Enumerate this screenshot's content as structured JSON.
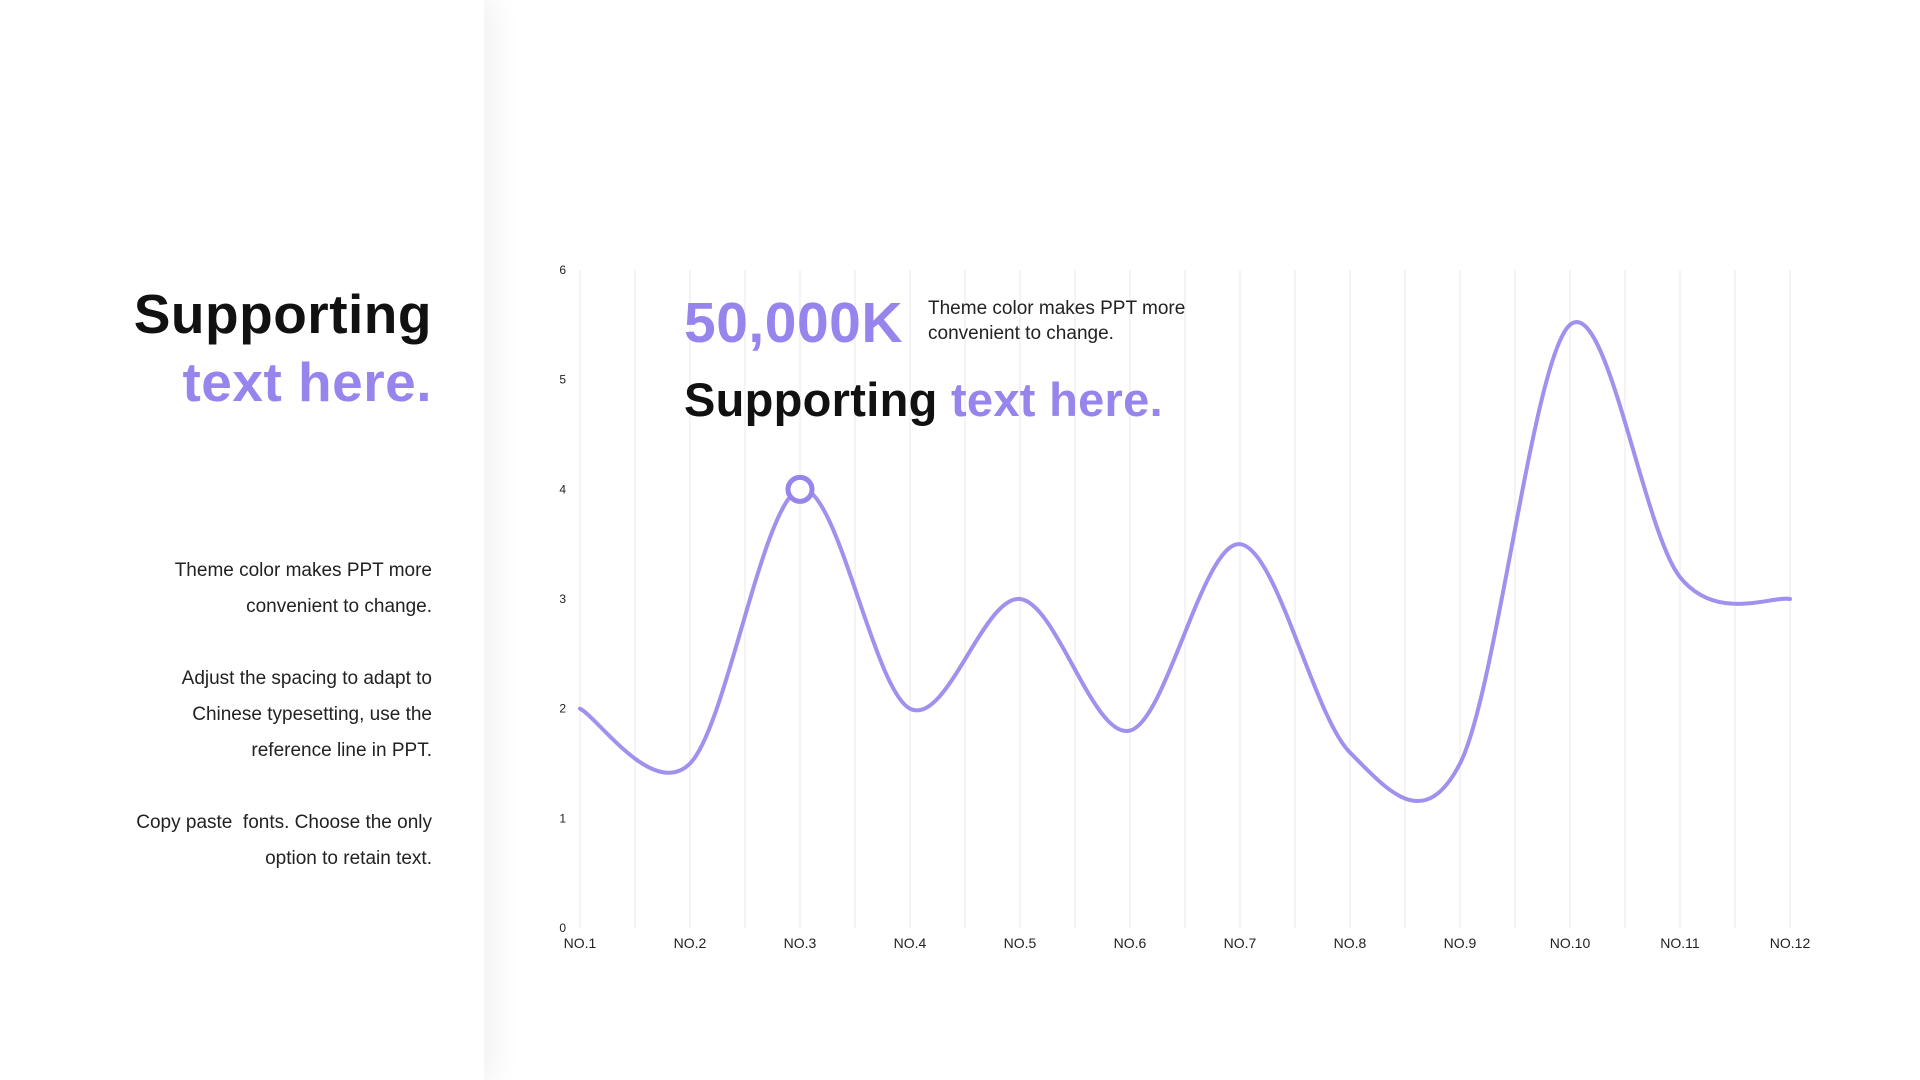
{
  "left": {
    "title_line1": "Supporting",
    "title_line2": "text here.",
    "paragraphs": [
      "Theme color makes PPT more\nconvenient to change.",
      "Adjust the spacing to adapt to\nChinese typesetting, use the\nreference line in PPT.",
      "Copy paste  fonts. Choose the only\noption to retain text."
    ]
  },
  "overlay": {
    "big_number": "50,000K",
    "note": "Theme color makes PPT more convenient to change.",
    "subtitle_dark": "Supporting",
    "subtitle_accent": "text here."
  },
  "colors": {
    "accent": "#9784ec",
    "grid": "#efefef",
    "text": "#111111"
  },
  "chart_data": {
    "type": "line",
    "categories": [
      "NO.1",
      "NO.2",
      "NO.3",
      "NO.4",
      "NO.5",
      "NO.6",
      "NO.7",
      "NO.8",
      "NO.9",
      "NO.10",
      "NO.11",
      "NO.12"
    ],
    "series": [
      {
        "values": [
          2.0,
          1.5,
          4.0,
          2.0,
          3.0,
          1.8,
          3.5,
          1.6,
          1.5,
          5.5,
          3.2,
          3.0
        ]
      }
    ],
    "highlight_index": 2,
    "ylim": [
      0,
      6
    ],
    "yticks": [
      0,
      1,
      2,
      3,
      4,
      5,
      6
    ],
    "grid": "vertical",
    "title": "",
    "xlabel": "",
    "ylabel": ""
  }
}
